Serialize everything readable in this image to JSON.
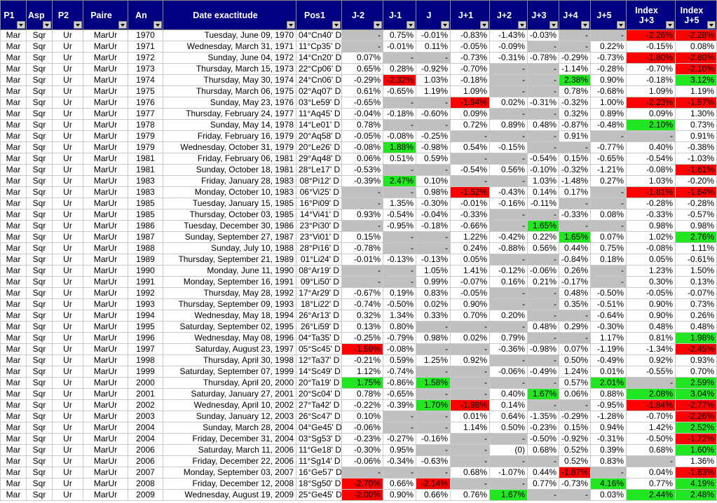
{
  "table": {
    "header": [
      "P1",
      "Asp",
      "P2",
      "Paire",
      "An",
      "Date exactitude",
      "Pos1",
      "J-2",
      "J-1",
      "J",
      "J+1",
      "J+2",
      "J+3",
      "J+4",
      "J+5",
      "Index J+3",
      "Index J+5"
    ],
    "rows": [
      [
        "Mar",
        "Sqr",
        "Ur",
        "MarUr",
        "1970",
        "Tuesday, June 09, 1970",
        "04°Cn40' D",
        "-",
        "0.75%",
        "-0.01%",
        "-0.83%",
        "-1.43%",
        "-0.03%",
        "-",
        "-",
        {
          "text": "-2.26%",
          "fill": "#ff0000"
        },
        {
          "text": "-2.28%",
          "fill": "#ff0000"
        }
      ],
      [
        "Mar",
        "Sqr",
        "Ur",
        "MarUr",
        "1971",
        "Wednesday, March 31, 1971",
        "11°Cp35' D",
        "-",
        "-0.01%",
        "0.11%",
        "-0.05%",
        "-0.09%",
        "-",
        "-",
        "0.22%",
        "-0.15%",
        "0.08%"
      ],
      [
        "Mar",
        "Sqr",
        "Ur",
        "MarUr",
        "1972",
        "Sunday, June 04, 1972",
        "14°Cn20' D",
        "0.07%",
        "-",
        "-",
        "-0.73%",
        "-0.31%",
        "-0.78%",
        "-0.29%",
        "-0.73%",
        {
          "text": "-1.80%",
          "fill": "#ff0000"
        },
        {
          "text": "-2.80%",
          "fill": "#ff0000"
        }
      ],
      [
        "Mar",
        "Sqr",
        "Ur",
        "MarUr",
        "1973",
        "Thursday, March 15, 1973",
        "22°Cp06' D",
        "0.65%",
        "0.28%",
        "-0.92%",
        "-0.70%",
        "-",
        "-",
        "-1.14%",
        "-0.28%",
        "-0.70%",
        {
          "text": "-2.10%",
          "fill": "#ff0000"
        }
      ],
      [
        "Mar",
        "Sqr",
        "Ur",
        "MarUr",
        "1974",
        "Thursday, May 30, 1974",
        "24°Cn06' D",
        "-0.29%",
        {
          "text": "-2.32%",
          "fill": "#ff0000"
        },
        "1.03%",
        "-0.18%",
        "-",
        "-",
        {
          "text": "2.38%",
          "fill": "#22e622"
        },
        "0.90%",
        "-0.18%",
        {
          "text": "3.12%",
          "fill": "#22e622"
        }
      ],
      [
        "Mar",
        "Sqr",
        "Ur",
        "MarUr",
        "1975",
        "Thursday, March 06, 1975",
        "02°Aq07' D",
        "0.61%",
        "-0.65%",
        "1.19%",
        "1.09%",
        "-",
        "-",
        "0.78%",
        "-0.68%",
        "1.09%",
        "1.19%"
      ],
      [
        "Mar",
        "Sqr",
        "Ur",
        "MarUr",
        "1976",
        "Sunday, May 23, 1976",
        "03°Le59' D",
        "-0.65%",
        "-",
        "-",
        {
          "text": "-1.94%",
          "fill": "#ff0000"
        },
        "0.02%",
        "-0.31%",
        "-0.32%",
        "1.00%",
        {
          "text": "-2.23%",
          "fill": "#ff0000"
        },
        {
          "text": "-1.57%",
          "fill": "#ff0000"
        }
      ],
      [
        "Mar",
        "Sqr",
        "Ur",
        "MarUr",
        "1977",
        "Thursday, February 24, 1977",
        "11°Aq45' D",
        "-0.04%",
        "-0.18%",
        "-0.60%",
        "0.09%",
        "-",
        "-",
        "0.32%",
        "0.89%",
        "0.09%",
        "1.30%"
      ],
      [
        "Mar",
        "Sqr",
        "Ur",
        "MarUr",
        "1978",
        "Sunday, May 14, 1978",
        "14°Le01' D",
        "0.78%",
        "-",
        "-",
        "0.72%",
        "0.89%",
        "0.48%",
        "-0.87%",
        "-0.48%",
        {
          "text": "2.10%",
          "fill": "#22e622"
        },
        "0.73%"
      ],
      [
        "Mar",
        "Sqr",
        "Ur",
        "MarUr",
        "1979",
        "Friday, February 16, 1979",
        "20°Aq58' D",
        "-0.05%",
        "-0.08%",
        "-0.25%",
        "-",
        "-",
        "-",
        "0.91%",
        "-",
        "-",
        "0.91%"
      ],
      [
        "Mar",
        "Sqr",
        "Ur",
        "MarUr",
        "1979",
        "Wednesday, October 31, 1979",
        "20°Le26' D",
        "-0.08%",
        {
          "text": "1.88%",
          "fill": "#22e622"
        },
        "-0.98%",
        "0.54%",
        "-0.15%",
        "-",
        "-",
        "-0.77%",
        "0.40%",
        "-0.38%"
      ],
      [
        "Mar",
        "Sqr",
        "Ur",
        "MarUr",
        "1981",
        "Friday, February 06, 1981",
        "29°Aq48' D",
        "0.06%",
        "0.51%",
        "0.59%",
        "-",
        "-",
        "-0.54%",
        "0.15%",
        "-0.65%",
        "-0.54%",
        "-1.03%"
      ],
      [
        "Mar",
        "Sqr",
        "Ur",
        "MarUr",
        "1981",
        "Sunday, October 18, 1981",
        "28°Le17' D",
        "-0.53%",
        "-",
        "-",
        "-0.54%",
        "0.56%",
        "-0.10%",
        "-0.32%",
        "-1.21%",
        "-0.08%",
        {
          "text": "-1.61%",
          "fill": "#ff0000"
        }
      ],
      [
        "Mar",
        "Sqr",
        "Ur",
        "MarUr",
        "1983",
        "Friday, January 28, 1983",
        "08°Pi12' D",
        "-0.39%",
        {
          "text": "2.47%",
          "fill": "#22e622"
        },
        "0.10%",
        "-",
        "-",
        "1.03%",
        "-1.48%",
        "0.27%",
        "1.03%",
        "-0.20%"
      ],
      [
        "Mar",
        "Sqr",
        "Ur",
        "MarUr",
        "1983",
        "Monday, October 10, 1983",
        "06°Vi25' D",
        "-",
        "-",
        "0.98%",
        {
          "text": "-1.52%",
          "fill": "#ff0000"
        },
        "-0.43%",
        "0.14%",
        "0.17%",
        "-",
        {
          "text": "-1.81%",
          "fill": "#ff0000"
        },
        {
          "text": "-1.64%",
          "fill": "#ff0000"
        }
      ],
      [
        "Mar",
        "Sqr",
        "Ur",
        "MarUr",
        "1985",
        "Tuesday, January 15, 1985",
        "16°Pi09' D",
        "-",
        "1.35%",
        "-0.30%",
        "-0.01%",
        "-0.16%",
        "-0.11%",
        "-",
        "-",
        "-0.28%",
        "-0.28%"
      ],
      [
        "Mar",
        "Sqr",
        "Ur",
        "MarUr",
        "1985",
        "Thursday, October 03, 1985",
        "14°Vi41' D",
        "0.93%",
        "-0.54%",
        "-0.04%",
        "-0.33%",
        "-",
        "-",
        "-0.33%",
        "0.08%",
        "-0.33%",
        "-0.57%"
      ],
      [
        "Mar",
        "Sqr",
        "Ur",
        "MarUr",
        "1986",
        "Tuesday, December 30, 1986",
        "23°Pi30' D",
        "-",
        "-0.95%",
        "-0.18%",
        "-0.66%",
        "-",
        {
          "text": "1.65%",
          "fill": "#22e622"
        },
        "-",
        "-",
        "0.98%",
        "0.98%"
      ],
      [
        "Mar",
        "Sqr",
        "Ur",
        "MarUr",
        "1987",
        "Sunday, September 27, 1987",
        "23°Vi01' D",
        "0.15%",
        "-",
        "-",
        "1.22%",
        "-0.42%",
        "0.22%",
        {
          "text": "1.65%",
          "fill": "#22e622"
        },
        "0.07%",
        "1.02%",
        {
          "text": "2.76%",
          "fill": "#22e622"
        }
      ],
      [
        "Mar",
        "Sqr",
        "Ur",
        "MarUr",
        "1988",
        "Sunday, July 10, 1988",
        "28°Pi16' D",
        "-0.78%",
        "-",
        "-",
        "0.24%",
        "-0.88%",
        "0.56%",
        "0.44%",
        "0.75%",
        "-0.08%",
        "1.11%"
      ],
      [
        "Mar",
        "Sqr",
        "Ur",
        "MarUr",
        "1989",
        "Thursday, September 21, 1989",
        "01°Li24' D",
        "-0.01%",
        "-0.13%",
        "-0.13%",
        "0.05%",
        "-",
        "-",
        "-0.84%",
        "0.18%",
        "0.05%",
        "-0.61%"
      ],
      [
        "Mar",
        "Sqr",
        "Ur",
        "MarUr",
        "1990",
        "Monday, June 11, 1990",
        "08°Ar19' D",
        "-",
        "-",
        "1.05%",
        "1.41%",
        "-0.12%",
        "-0.06%",
        "0.26%",
        "-",
        "1.23%",
        "1.50%"
      ],
      [
        "Mar",
        "Sqr",
        "Ur",
        "MarUr",
        "1991",
        "Monday, September 16, 1991",
        "09°Li50' D",
        "-",
        "-",
        "0.99%",
        "-0.07%",
        "0.16%",
        "0.21%",
        "-0.17%",
        "-",
        "0.30%",
        "0.13%"
      ],
      [
        "Mar",
        "Sqr",
        "Ur",
        "MarUr",
        "1992",
        "Thursday, May 28, 1992",
        "17°Ar29' D",
        "-0.67%",
        "0.19%",
        "0.83%",
        "-0.05%",
        "-",
        "-",
        "0.48%",
        "-0.50%",
        "-0.05%",
        "-0.07%"
      ],
      [
        "Mar",
        "Sqr",
        "Ur",
        "MarUr",
        "1993",
        "Thursday, September 09, 1993",
        "18°Li22' D",
        "-0.74%",
        "-0.50%",
        "0.02%",
        "0.90%",
        "-",
        "-",
        "0.35%",
        "-0.51%",
        "0.90%",
        "0.73%"
      ],
      [
        "Mar",
        "Sqr",
        "Ur",
        "MarUr",
        "1994",
        "Wednesday, May 18, 1994",
        "26°Ar13' D",
        "0.32%",
        "1.34%",
        "0.33%",
        "0.70%",
        "0.20%",
        "-",
        "-",
        "-0.64%",
        "0.90%",
        "0.26%"
      ],
      [
        "Mar",
        "Sqr",
        "Ur",
        "MarUr",
        "1995",
        "Saturday, September 02, 1995",
        "26°Li59' D",
        "0.13%",
        "0.80%",
        "-",
        "-",
        "-",
        "0.48%",
        "0.29%",
        "-0.30%",
        "0.48%",
        "0.48%"
      ],
      [
        "Mar",
        "Sqr",
        "Ur",
        "MarUr",
        "1996",
        "Wednesday, May 08, 1996",
        "04°Ta35' D",
        "-0.25%",
        "-0.79%",
        "0.98%",
        "0.02%",
        "0.79%",
        "-",
        "-",
        "1.17%",
        "0.81%",
        {
          "text": "1.98%",
          "fill": "#22e622"
        }
      ],
      [
        "Mar",
        "Sqr",
        "Ur",
        "MarUr",
        "1997",
        "Saturday, August 23, 1997",
        "05°Sc45' D",
        {
          "text": "-1.59%",
          "fill": "#ff0000"
        },
        "-0.08%",
        "-",
        "-",
        "-0.36%",
        "-0.98%",
        "0.07%",
        "-1.19%",
        "-1.34%",
        {
          "text": "-2.45%",
          "fill": "#ff0000"
        }
      ],
      [
        "Mar",
        "Sqr",
        "Ur",
        "MarUr",
        "1998",
        "Thursday, April 30, 1998",
        "12°Ta37' D",
        "-0.21%",
        "0.59%",
        "1.25%",
        "0.92%",
        "-",
        "-",
        "0.50%",
        "-0.49%",
        "0.92%",
        "0.93%"
      ],
      [
        "Mar",
        "Sqr",
        "Ur",
        "MarUr",
        "1999",
        "Saturday, September 07, 1999",
        "14°Sc49' D",
        "1.12%",
        "-0.74%",
        "-",
        "-",
        "-0.06%",
        "-0.49%",
        "1.24%",
        "0.01%",
        "-0.55%",
        "0.70%"
      ],
      [
        "Mar",
        "Sqr",
        "Ur",
        "MarUr",
        "2000",
        "Thursday, April 20, 2000",
        "20°Ta19' D",
        {
          "text": "1.75%",
          "fill": "#22e622"
        },
        "-0.86%",
        {
          "text": "1.58%",
          "fill": "#22e622"
        },
        "-",
        "-",
        "-",
        "0.57%",
        {
          "text": "2.01%",
          "fill": "#22e622"
        },
        "-",
        {
          "text": "2.59%",
          "fill": "#22e622"
        }
      ],
      [
        "Mar",
        "Sqr",
        "Ur",
        "MarUr",
        "2001",
        "Saturday, January 27, 2001",
        "20°Sc04' D",
        "0.78%",
        "-0.65%",
        "-",
        "-",
        "0.40%",
        {
          "text": "1.67%",
          "fill": "#22e622"
        },
        "0.06%",
        "0.88%",
        {
          "text": "2.08%",
          "fill": "#22e622"
        },
        {
          "text": "3.04%",
          "fill": "#22e622"
        }
      ],
      [
        "Mar",
        "Sqr",
        "Ur",
        "MarUr",
        "2002",
        "Wednesday, April 10, 2002",
        "27°Ta42' D",
        "-0.22%",
        "-0.39%",
        {
          "text": "1.70%",
          "fill": "#22e622"
        },
        {
          "text": "-1.98%",
          "fill": "#ff0000"
        },
        "0.14%",
        "-",
        "-",
        "-0.95%",
        {
          "text": "-1.84%",
          "fill": "#ff0000"
        },
        {
          "text": "-2.77%",
          "fill": "#ff0000"
        }
      ],
      [
        "Mar",
        "Sqr",
        "Ur",
        "MarUr",
        "2003",
        "Sunday, January 12, 2003",
        "26°Sc47' D",
        "0.10%",
        "-",
        "-",
        "0.01%",
        "0.64%",
        "-1.35%",
        "-0.29%",
        "-1.28%",
        "-0.70%",
        {
          "text": "-2.26%",
          "fill": "#ff0000"
        }
      ],
      [
        "Mar",
        "Sqr",
        "Ur",
        "MarUr",
        "2004",
        "Sunday, March 28, 2004",
        "04°Ge45' D",
        "-0.06%",
        "-",
        "-",
        "1.14%",
        "0.50%",
        "-0.23%",
        "0.15%",
        "0.94%",
        "1.42%",
        {
          "text": "2.52%",
          "fill": "#22e622"
        }
      ],
      [
        "Mar",
        "Sqr",
        "Ur",
        "MarUr",
        "2004",
        "Friday, December 31, 2004",
        "03°Sg53' D",
        "-0.23%",
        "-0.27%",
        "-0.16%",
        "-",
        "-",
        "-0.50%",
        "-0.92%",
        "-0.31%",
        "-0.50%",
        {
          "text": "-1.72%",
          "fill": "#ff0000"
        }
      ],
      [
        "Mar",
        "Sqr",
        "Ur",
        "MarUr",
        "2006",
        "Saturday, March 11, 2006",
        "11°Ge18' D",
        "-0.30%",
        "0.95%",
        "-",
        "-",
        "(0)",
        "0.68%",
        "0.52%",
        "0.39%",
        "0.68%",
        {
          "text": "1.60%",
          "fill": "#22e622"
        }
      ],
      [
        "Mar",
        "Sqr",
        "Ur",
        "MarUr",
        "2006",
        "Friday, December 22, 2006",
        "11°Sg14' D",
        "-0.06%",
        "-0.34%",
        "-0.63%",
        "-",
        "-",
        "-",
        "0.52%",
        "0.83%",
        "-",
        "1.36%"
      ],
      [
        "Mar",
        "Sqr",
        "Ur",
        "MarUr",
        "2007",
        "Monday, September 03, 2007",
        "16°Ge57' D",
        "-",
        "-",
        "-",
        "0.68%",
        "-1.07%",
        "0.44%",
        {
          "text": "-1.87%",
          "fill": "#ff0000"
        },
        "-",
        "0.04%",
        {
          "text": "-1.83%",
          "fill": "#ff0000"
        }
      ],
      [
        "Mar",
        "Sqr",
        "Ur",
        "MarUr",
        "2008",
        "Friday, December 12, 2008",
        "18°Sg50' D",
        {
          "text": "-2.70%",
          "fill": "#ff0000"
        },
        "0.66%",
        {
          "text": "-2.14%",
          "fill": "#ff0000"
        },
        "-",
        "-",
        "0.77%",
        "-0.73%",
        {
          "text": "4.16%",
          "fill": "#22e622"
        },
        "0.77%",
        {
          "text": "4.19%",
          "fill": "#22e622"
        }
      ],
      [
        "Mar",
        "Sqr",
        "Ur",
        "MarUr",
        "2009",
        "Wednesday, August 19, 2009",
        "25°Ge45' D",
        {
          "text": "-2.00%",
          "fill": "#ff0000"
        },
        "0.90%",
        "0.66%",
        "0.76%",
        {
          "text": "1.67%",
          "fill": "#22e622"
        },
        "-",
        "-",
        "0.03%",
        {
          "text": "2.44%",
          "fill": "#22e622"
        },
        {
          "text": "2.48%",
          "fill": "#22e622"
        }
      ]
    ]
  }
}
